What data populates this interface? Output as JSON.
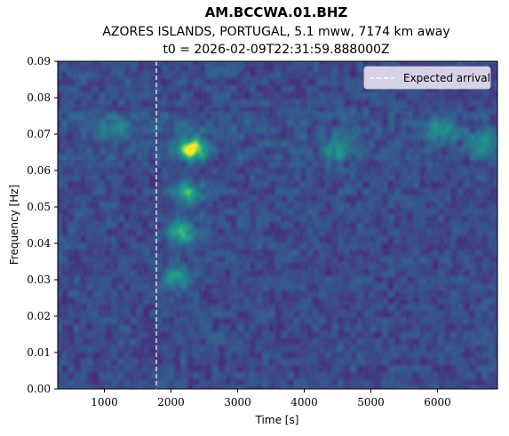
{
  "chart_data": {
    "type": "heatmap",
    "title": "AM.BCCWA.01.BHZ",
    "subtitle_line1": "AZORES ISLANDS, PORTUGAL, 5.1 mww, 7174 km away",
    "subtitle_line2": "t0 = 2026-02-09T22:31:59.888000Z",
    "xlabel": "Time [s]",
    "ylabel": "Frequency [Hz]",
    "xlim": [
      300,
      6900
    ],
    "ylim": [
      0,
      0.09
    ],
    "x_ticks": [
      1000,
      2000,
      3000,
      4000,
      5000,
      6000
    ],
    "x_tick_labels": [
      "1000",
      "2000",
      "3000",
      "4000",
      "5000",
      "6000"
    ],
    "y_ticks": [
      0.0,
      0.01,
      0.02,
      0.03,
      0.04,
      0.05,
      0.06,
      0.07,
      0.08,
      0.09
    ],
    "y_tick_labels": [
      "0.00",
      "0.01",
      "0.02",
      "0.03",
      "0.04",
      "0.05",
      "0.06",
      "0.07",
      "0.08",
      "0.09"
    ],
    "colormap": "viridis",
    "expected_arrival": {
      "label": "Expected arrival",
      "x": 1780,
      "color": "#ffffff",
      "style": "dashed"
    },
    "legend": {
      "position": "top-right",
      "entries": [
        "Expected arrival"
      ]
    },
    "grid": false,
    "energy_blobs": [
      {
        "t": 2330,
        "f": 0.066,
        "intensity": 1.0
      },
      {
        "t": 2230,
        "f": 0.054,
        "intensity": 0.62
      },
      {
        "t": 2150,
        "f": 0.043,
        "intensity": 0.6
      },
      {
        "t": 2080,
        "f": 0.031,
        "intensity": 0.45
      },
      {
        "t": 1150,
        "f": 0.072,
        "intensity": 0.4
      },
      {
        "t": 6050,
        "f": 0.071,
        "intensity": 0.45
      },
      {
        "t": 6700,
        "f": 0.068,
        "intensity": 0.42
      },
      {
        "t": 4500,
        "f": 0.066,
        "intensity": 0.38
      }
    ]
  }
}
